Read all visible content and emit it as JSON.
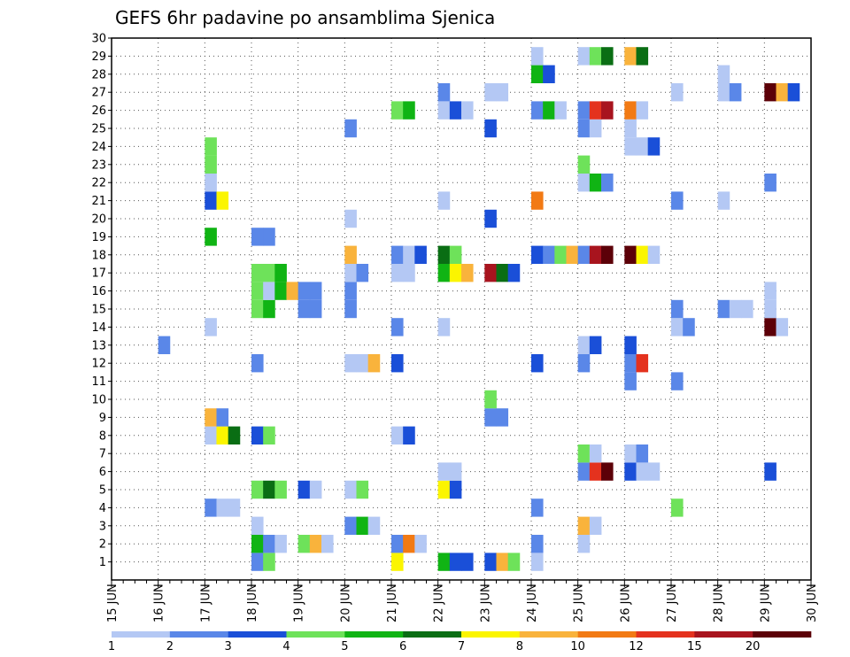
{
  "chart_data": {
    "type": "heatmap",
    "title": "GEFS 6hr padavine po ansamblima Sjenica",
    "x_start_day": 15,
    "x_end_day": 30,
    "x_tick_labels": [
      "15 JUN",
      "16 JUN",
      "17 JUN",
      "18 JUN",
      "19 JUN",
      "20 JUN",
      "21 JUN",
      "22 JUN",
      "23 JUN",
      "24 JUN",
      "25 JUN",
      "26 JUN",
      "27 JUN",
      "28 JUN",
      "29 JUN",
      "30 JUN"
    ],
    "y_tick_labels": [
      "1",
      "2",
      "3",
      "4",
      "5",
      "6",
      "7",
      "8",
      "9",
      "10",
      "11",
      "12",
      "13",
      "14",
      "15",
      "16",
      "17",
      "18",
      "19",
      "20",
      "21",
      "22",
      "23",
      "24",
      "25",
      "26",
      "27",
      "28",
      "29",
      "30"
    ],
    "ylim": [
      0,
      30
    ],
    "grid": true,
    "legend": {
      "placement": "bottom",
      "labels": [
        "1",
        "2",
        "3",
        "4",
        "5",
        "6",
        "7",
        "8",
        "10",
        "12",
        "15",
        "20"
      ],
      "colors": [
        "#b4c8f4",
        "#5a87e8",
        "#1a4fd8",
        "#6ee25a",
        "#10b414",
        "#0a6e14",
        "#fbf500",
        "#f9b33c",
        "#f27a14",
        "#e4321e",
        "#a8141e",
        "#5c0008"
      ]
    },
    "cells": [
      {
        "x": "18 JUN",
        "m": 1,
        "v": 2
      },
      {
        "x": "18 JUN",
        "m": 1,
        "v": 4
      },
      {
        "x": "21 JUN",
        "m": 1,
        "v": 7
      },
      {
        "x": "22 JUN",
        "m": 1,
        "v": 5
      },
      {
        "x": "22 JUN",
        "m": 1,
        "v": 3
      },
      {
        "x": "22 JUN",
        "m": 1,
        "v": 3
      },
      {
        "x": "23 JUN",
        "m": 1,
        "v": 3
      },
      {
        "x": "23 JUN",
        "m": 1,
        "v": 8
      },
      {
        "x": "23 JUN",
        "m": 1,
        "v": 4
      },
      {
        "x": "24 JUN",
        "m": 1,
        "v": 1
      },
      {
        "x": "18 JUN",
        "m": 2,
        "v": 5
      },
      {
        "x": "18 JUN",
        "m": 2,
        "v": 2
      },
      {
        "x": "18 JUN",
        "m": 2,
        "v": 1
      },
      {
        "x": "19 JUN",
        "m": 2,
        "v": 4
      },
      {
        "x": "19 JUN",
        "m": 2,
        "v": 8
      },
      {
        "x": "19 JUN",
        "m": 2,
        "v": 1
      },
      {
        "x": "21 JUN",
        "m": 2,
        "v": 2
      },
      {
        "x": "21 JUN",
        "m": 2,
        "v": 10
      },
      {
        "x": "21 JUN",
        "m": 2,
        "v": 1
      },
      {
        "x": "24 JUN",
        "m": 2,
        "v": 2
      },
      {
        "x": "25 JUN",
        "m": 2,
        "v": 1
      },
      {
        "x": "18 JUN",
        "m": 3,
        "v": 1
      },
      {
        "x": "20 JUN",
        "m": 3,
        "v": 2
      },
      {
        "x": "20 JUN",
        "m": 3,
        "v": 5
      },
      {
        "x": "20 JUN",
        "m": 3,
        "v": 1
      },
      {
        "x": "25 JUN",
        "m": 3,
        "v": 8
      },
      {
        "x": "25 JUN",
        "m": 3,
        "v": 1
      },
      {
        "x": "17 JUN",
        "m": 4,
        "v": 2
      },
      {
        "x": "17 JUN",
        "m": 4,
        "v": 1
      },
      {
        "x": "17 JUN",
        "m": 4,
        "v": 1
      },
      {
        "x": "24 JUN",
        "m": 4,
        "v": 2
      },
      {
        "x": "27 JUN",
        "m": 4,
        "v": 4
      },
      {
        "x": "18 JUN",
        "m": 5,
        "v": 4
      },
      {
        "x": "18 JUN",
        "m": 5,
        "v": 6
      },
      {
        "x": "18 JUN",
        "m": 5,
        "v": 4
      },
      {
        "x": "19 JUN",
        "m": 5,
        "v": 3
      },
      {
        "x": "19 JUN",
        "m": 5,
        "v": 1
      },
      {
        "x": "20 JUN",
        "m": 5,
        "v": 1
      },
      {
        "x": "20 JUN",
        "m": 5,
        "v": 4
      },
      {
        "x": "22 JUN",
        "m": 5,
        "v": 7
      },
      {
        "x": "22 JUN",
        "m": 5,
        "v": 3
      },
      {
        "x": "22 JUN",
        "m": 6,
        "v": 1
      },
      {
        "x": "22 JUN",
        "m": 6,
        "v": 1
      },
      {
        "x": "25 JUN",
        "m": 6,
        "v": 2
      },
      {
        "x": "25 JUN",
        "m": 6,
        "v": 12
      },
      {
        "x": "25 JUN",
        "m": 6,
        "v": 20
      },
      {
        "x": "26 JUN",
        "m": 6,
        "v": 3
      },
      {
        "x": "26 JUN",
        "m": 6,
        "v": 1
      },
      {
        "x": "26 JUN",
        "m": 6,
        "v": 1
      },
      {
        "x": "29 JUN",
        "m": 6,
        "v": 3
      },
      {
        "x": "25 JUN",
        "m": 7,
        "v": 4
      },
      {
        "x": "25 JUN",
        "m": 7,
        "v": 1
      },
      {
        "x": "26 JUN",
        "m": 7,
        "v": 1
      },
      {
        "x": "26 JUN",
        "m": 7,
        "v": 2
      },
      {
        "x": "17 JUN",
        "m": 8,
        "v": 1
      },
      {
        "x": "17 JUN",
        "m": 8,
        "v": 7
      },
      {
        "x": "17 JUN",
        "m": 8,
        "v": 6
      },
      {
        "x": "18 JUN",
        "m": 8,
        "v": 3
      },
      {
        "x": "18 JUN",
        "m": 8,
        "v": 4
      },
      {
        "x": "21 JUN",
        "m": 8,
        "v": 1
      },
      {
        "x": "21 JUN",
        "m": 8,
        "v": 3
      },
      {
        "x": "17 JUN",
        "m": 9,
        "v": 8
      },
      {
        "x": "17 JUN",
        "m": 9,
        "v": 2
      },
      {
        "x": "23 JUN",
        "m": 9,
        "v": 2
      },
      {
        "x": "23 JUN",
        "m": 9,
        "v": 2
      },
      {
        "x": "23 JUN",
        "m": 10,
        "v": 4
      },
      {
        "x": "26 JUN",
        "m": 11,
        "v": 2
      },
      {
        "x": "27 JUN",
        "m": 11,
        "v": 2
      },
      {
        "x": "18 JUN",
        "m": 12,
        "v": 2
      },
      {
        "x": "20 JUN",
        "m": 12,
        "v": 1
      },
      {
        "x": "20 JUN",
        "m": 12,
        "v": 1
      },
      {
        "x": "20 JUN",
        "m": 12,
        "v": 8
      },
      {
        "x": "21 JUN",
        "m": 12,
        "v": 3
      },
      {
        "x": "24 JUN",
        "m": 12,
        "v": 3
      },
      {
        "x": "25 JUN",
        "m": 12,
        "v": 2
      },
      {
        "x": "26 JUN",
        "m": 12,
        "v": 2
      },
      {
        "x": "26 JUN",
        "m": 12,
        "v": 12
      },
      {
        "x": "16 JUN",
        "m": 13,
        "v": 2
      },
      {
        "x": "25 JUN",
        "m": 13,
        "v": 1
      },
      {
        "x": "25 JUN",
        "m": 13,
        "v": 3
      },
      {
        "x": "26 JUN",
        "m": 13,
        "v": 3
      },
      {
        "x": "17 JUN",
        "m": 14,
        "v": 1
      },
      {
        "x": "21 JUN",
        "m": 14,
        "v": 2
      },
      {
        "x": "22 JUN",
        "m": 14,
        "v": 1
      },
      {
        "x": "27 JUN",
        "m": 14,
        "v": 1
      },
      {
        "x": "27 JUN",
        "m": 14,
        "v": 2
      },
      {
        "x": "29 JUN",
        "m": 14,
        "v": 20
      },
      {
        "x": "29 JUN",
        "m": 14,
        "v": 1
      },
      {
        "x": "18 JUN",
        "m": 15,
        "v": 4
      },
      {
        "x": "18 JUN",
        "m": 15,
        "v": 5
      },
      {
        "x": "19 JUN",
        "m": 15,
        "v": 2
      },
      {
        "x": "19 JUN",
        "m": 15,
        "v": 2
      },
      {
        "x": "20 JUN",
        "m": 15,
        "v": 2
      },
      {
        "x": "27 JUN",
        "m": 15,
        "v": 2
      },
      {
        "x": "28 JUN",
        "m": 15,
        "v": 2
      },
      {
        "x": "28 JUN",
        "m": 15,
        "v": 1
      },
      {
        "x": "28 JUN",
        "m": 15,
        "v": 1
      },
      {
        "x": "29 JUN",
        "m": 15,
        "v": 1
      },
      {
        "x": "18 JUN",
        "m": 16,
        "v": 4
      },
      {
        "x": "18 JUN",
        "m": 16,
        "v": 1
      },
      {
        "x": "18 JUN",
        "m": 16,
        "v": 5
      },
      {
        "x": "18 JUN",
        "m": 16,
        "v": 8
      },
      {
        "x": "19 JUN",
        "m": 16,
        "v": 2
      },
      {
        "x": "19 JUN",
        "m": 16,
        "v": 2
      },
      {
        "x": "20 JUN",
        "m": 16,
        "v": 2
      },
      {
        "x": "29 JUN",
        "m": 16,
        "v": 1
      },
      {
        "x": "18 JUN",
        "m": 17,
        "v": 4
      },
      {
        "x": "18 JUN",
        "m": 17,
        "v": 4
      },
      {
        "x": "18 JUN",
        "m": 17,
        "v": 5
      },
      {
        "x": "20 JUN",
        "m": 17,
        "v": 1
      },
      {
        "x": "20 JUN",
        "m": 17,
        "v": 2
      },
      {
        "x": "21 JUN",
        "m": 17,
        "v": 1
      },
      {
        "x": "21 JUN",
        "m": 17,
        "v": 1
      },
      {
        "x": "22 JUN",
        "m": 17,
        "v": 5
      },
      {
        "x": "22 JUN",
        "m": 17,
        "v": 7
      },
      {
        "x": "22 JUN",
        "m": 17,
        "v": 8
      },
      {
        "x": "23 JUN",
        "m": 17,
        "v": 15
      },
      {
        "x": "23 JUN",
        "m": 17,
        "v": 6
      },
      {
        "x": "23 JUN",
        "m": 17,
        "v": 3
      },
      {
        "x": "20 JUN",
        "m": 18,
        "v": 8
      },
      {
        "x": "21 JUN",
        "m": 18,
        "v": 2
      },
      {
        "x": "21 JUN",
        "m": 18,
        "v": 1
      },
      {
        "x": "21 JUN",
        "m": 18,
        "v": 3
      },
      {
        "x": "22 JUN",
        "m": 18,
        "v": 6
      },
      {
        "x": "22 JUN",
        "m": 18,
        "v": 4
      },
      {
        "x": "24 JUN",
        "m": 18,
        "v": 3
      },
      {
        "x": "24 JUN",
        "m": 18,
        "v": 2
      },
      {
        "x": "24 JUN",
        "m": 18,
        "v": 4
      },
      {
        "x": "24 JUN",
        "m": 18,
        "v": 8
      },
      {
        "x": "25 JUN",
        "m": 18,
        "v": 2
      },
      {
        "x": "25 JUN",
        "m": 18,
        "v": 15
      },
      {
        "x": "25 JUN",
        "m": 18,
        "v": 20
      },
      {
        "x": "26 JUN",
        "m": 18,
        "v": 20
      },
      {
        "x": "26 JUN",
        "m": 18,
        "v": 7
      },
      {
        "x": "26 JUN",
        "m": 18,
        "v": 1
      },
      {
        "x": "17 JUN",
        "m": 19,
        "v": 5
      },
      {
        "x": "18 JUN",
        "m": 19,
        "v": 2
      },
      {
        "x": "18 JUN",
        "m": 19,
        "v": 2
      },
      {
        "x": "20 JUN",
        "m": 20,
        "v": 1
      },
      {
        "x": "23 JUN",
        "m": 20,
        "v": 3
      },
      {
        "x": "17 JUN",
        "m": 21,
        "v": 3
      },
      {
        "x": "17 JUN",
        "m": 21,
        "v": 7
      },
      {
        "x": "22 JUN",
        "m": 21,
        "v": 1
      },
      {
        "x": "24 JUN",
        "m": 21,
        "v": 10
      },
      {
        "x": "27 JUN",
        "m": 21,
        "v": 2
      },
      {
        "x": "28 JUN",
        "m": 21,
        "v": 1
      },
      {
        "x": "17 JUN",
        "m": 22,
        "v": 1
      },
      {
        "x": "25 JUN",
        "m": 22,
        "v": 1
      },
      {
        "x": "25 JUN",
        "m": 22,
        "v": 5
      },
      {
        "x": "25 JUN",
        "m": 22,
        "v": 2
      },
      {
        "x": "29 JUN",
        "m": 22,
        "v": 2
      },
      {
        "x": "17 JUN",
        "m": 23,
        "v": 4
      },
      {
        "x": "25 JUN",
        "m": 23,
        "v": 4
      },
      {
        "x": "17 JUN",
        "m": 24,
        "v": 4
      },
      {
        "x": "26 JUN",
        "m": 24,
        "v": 1
      },
      {
        "x": "26 JUN",
        "m": 24,
        "v": 1
      },
      {
        "x": "26 JUN",
        "m": 24,
        "v": 3
      },
      {
        "x": "20 JUN",
        "m": 25,
        "v": 2
      },
      {
        "x": "23 JUN",
        "m": 25,
        "v": 3
      },
      {
        "x": "25 JUN",
        "m": 25,
        "v": 2
      },
      {
        "x": "25 JUN",
        "m": 25,
        "v": 1
      },
      {
        "x": "26 JUN",
        "m": 25,
        "v": 1
      },
      {
        "x": "21 JUN",
        "m": 26,
        "v": 4
      },
      {
        "x": "21 JUN",
        "m": 26,
        "v": 5
      },
      {
        "x": "22 JUN",
        "m": 26,
        "v": 1
      },
      {
        "x": "22 JUN",
        "m": 26,
        "v": 3
      },
      {
        "x": "22 JUN",
        "m": 26,
        "v": 1
      },
      {
        "x": "24 JUN",
        "m": 26,
        "v": 2
      },
      {
        "x": "24 JUN",
        "m": 26,
        "v": 5
      },
      {
        "x": "24 JUN",
        "m": 26,
        "v": 1
      },
      {
        "x": "25 JUN",
        "m": 26,
        "v": 2
      },
      {
        "x": "25 JUN",
        "m": 26,
        "v": 12
      },
      {
        "x": "25 JUN",
        "m": 26,
        "v": 15
      },
      {
        "x": "26 JUN",
        "m": 26,
        "v": 10
      },
      {
        "x": "26 JUN",
        "m": 26,
        "v": 1
      },
      {
        "x": "22 JUN",
        "m": 27,
        "v": 2
      },
      {
        "x": "23 JUN",
        "m": 27,
        "v": 1
      },
      {
        "x": "23 JUN",
        "m": 27,
        "v": 1
      },
      {
        "x": "27 JUN",
        "m": 27,
        "v": 1
      },
      {
        "x": "28 JUN",
        "m": 27,
        "v": 1
      },
      {
        "x": "28 JUN",
        "m": 27,
        "v": 2
      },
      {
        "x": "29 JUN",
        "m": 27,
        "v": 20
      },
      {
        "x": "29 JUN",
        "m": 27,
        "v": 8
      },
      {
        "x": "29 JUN",
        "m": 27,
        "v": 3
      },
      {
        "x": "24 JUN",
        "m": 28,
        "v": 5
      },
      {
        "x": "24 JUN",
        "m": 28,
        "v": 3
      },
      {
        "x": "28 JUN",
        "m": 28,
        "v": 1
      },
      {
        "x": "24 JUN",
        "m": 29,
        "v": 1
      },
      {
        "x": "25 JUN",
        "m": 29,
        "v": 1
      },
      {
        "x": "25 JUN",
        "m": 29,
        "v": 4
      },
      {
        "x": "25 JUN",
        "m": 29,
        "v": 6
      },
      {
        "x": "26 JUN",
        "m": 29,
        "v": 8
      },
      {
        "x": "26 JUN",
        "m": 29,
        "v": 6
      }
    ]
  }
}
